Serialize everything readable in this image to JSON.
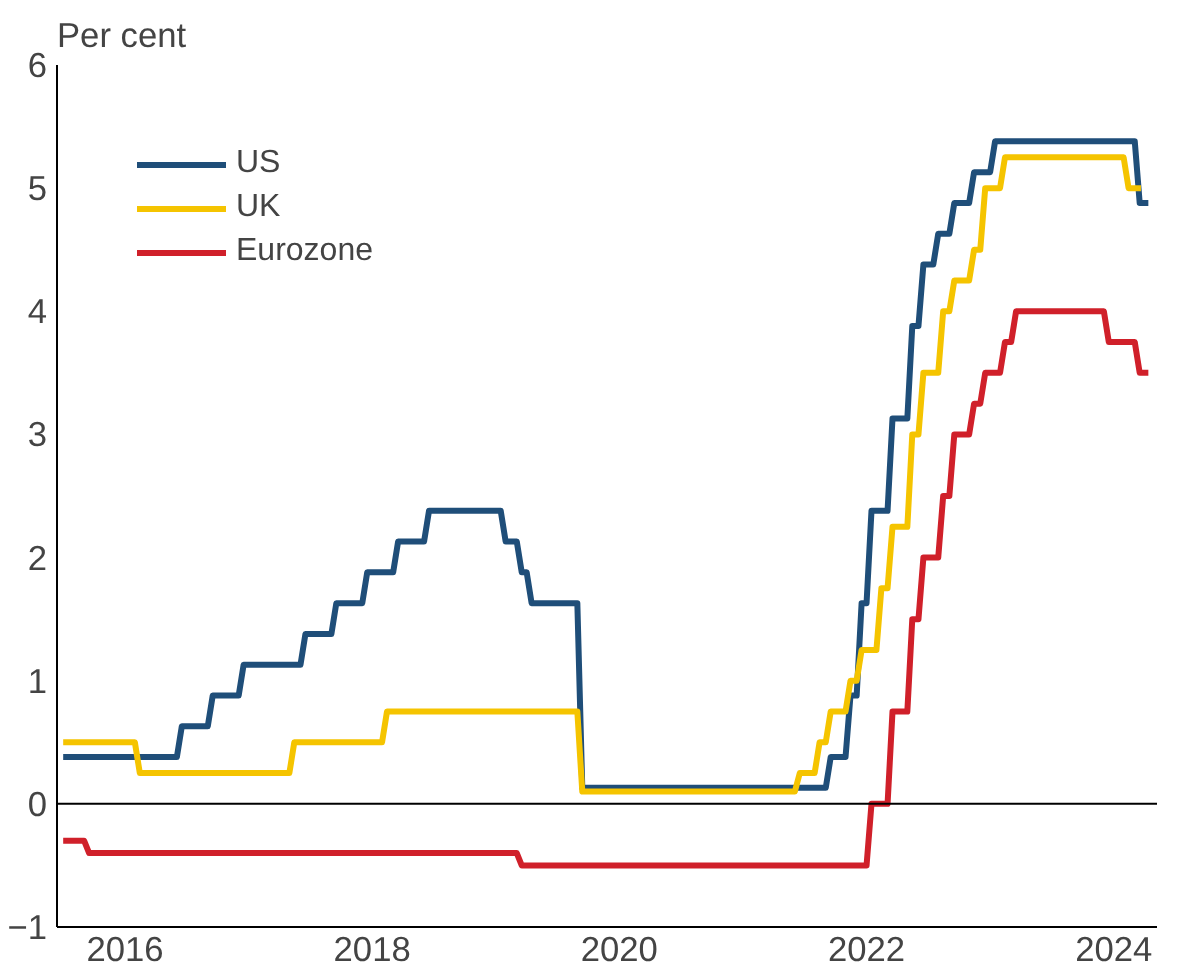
{
  "chart_data": {
    "type": "line",
    "ylabel": "Per cent",
    "xlim": [
      2015.95,
      2024.85
    ],
    "ylim": [
      -1,
      6
    ],
    "xticks": [
      {
        "value": 2016.5,
        "label": "2016"
      },
      {
        "value": 2018.5,
        "label": "2018"
      },
      {
        "value": 2020.5,
        "label": "2020"
      },
      {
        "value": 2022.5,
        "label": "2022"
      },
      {
        "value": 2024.5,
        "label": "2024"
      }
    ],
    "yticks": [
      -1,
      0,
      1,
      2,
      3,
      4,
      5,
      6
    ],
    "legend": "top left",
    "grid": false,
    "ref_lines": [
      {
        "axis": "y",
        "value": 0,
        "color": "#000000"
      }
    ],
    "series": [
      {
        "name": "US",
        "color": "#1f4e79",
        "x": [
          2016.0,
          2016.92,
          2016.96,
          2017.17,
          2017.21,
          2017.42,
          2017.46,
          2017.92,
          2017.96,
          2018.17,
          2018.21,
          2018.42,
          2018.46,
          2018.67,
          2018.71,
          2018.92,
          2018.96,
          2019.54,
          2019.58,
          2019.67,
          2019.71,
          2019.75,
          2019.79,
          2020.16,
          2020.2,
          2022.17,
          2022.21,
          2022.33,
          2022.37,
          2022.42,
          2022.46,
          2022.5,
          2022.54,
          2022.67,
          2022.71,
          2022.83,
          2022.87,
          2022.92,
          2022.96,
          2023.04,
          2023.08,
          2023.17,
          2023.21,
          2023.33,
          2023.37,
          2023.5,
          2023.54,
          2024.67,
          2024.71,
          2024.78
        ],
        "values": [
          0.38,
          0.38,
          0.63,
          0.63,
          0.88,
          0.88,
          1.13,
          1.13,
          1.38,
          1.38,
          1.63,
          1.63,
          1.88,
          1.88,
          2.13,
          2.13,
          2.38,
          2.38,
          2.13,
          2.13,
          1.88,
          1.88,
          1.63,
          1.63,
          0.13,
          0.13,
          0.38,
          0.38,
          0.88,
          0.88,
          1.63,
          1.63,
          2.38,
          2.38,
          3.13,
          3.13,
          3.88,
          3.88,
          4.38,
          4.38,
          4.63,
          4.63,
          4.88,
          4.88,
          5.13,
          5.13,
          5.38,
          5.38,
          4.88,
          4.88
        ]
      },
      {
        "name": "UK",
        "color": "#f5c400",
        "x": [
          2016.0,
          2016.58,
          2016.62,
          2017.83,
          2017.87,
          2018.58,
          2018.62,
          2020.16,
          2020.2,
          2021.92,
          2021.96,
          2022.08,
          2022.12,
          2022.17,
          2022.21,
          2022.33,
          2022.37,
          2022.42,
          2022.46,
          2022.58,
          2022.62,
          2022.67,
          2022.71,
          2022.83,
          2022.87,
          2022.92,
          2022.96,
          2023.08,
          2023.12,
          2023.17,
          2023.21,
          2023.33,
          2023.37,
          2023.42,
          2023.46,
          2023.58,
          2023.62,
          2024.58,
          2024.62,
          2024.72
        ],
        "values": [
          0.5,
          0.5,
          0.25,
          0.25,
          0.5,
          0.5,
          0.75,
          0.75,
          0.1,
          0.1,
          0.25,
          0.25,
          0.5,
          0.5,
          0.75,
          0.75,
          1.0,
          1.0,
          1.25,
          1.25,
          1.75,
          1.75,
          2.25,
          2.25,
          3.0,
          3.0,
          3.5,
          3.5,
          4.0,
          4.0,
          4.25,
          4.25,
          4.5,
          4.5,
          5.0,
          5.0,
          5.25,
          5.25,
          5.0,
          5.0
        ]
      },
      {
        "name": "Eurozone",
        "color": "#d0202a",
        "x": [
          2016.0,
          2016.17,
          2016.21,
          2019.67,
          2019.71,
          2022.5,
          2022.54,
          2022.67,
          2022.71,
          2022.83,
          2022.87,
          2022.92,
          2022.96,
          2023.08,
          2023.12,
          2023.17,
          2023.21,
          2023.33,
          2023.37,
          2023.42,
          2023.46,
          2023.58,
          2023.62,
          2023.67,
          2023.71,
          2024.42,
          2024.46,
          2024.67,
          2024.71,
          2024.78
        ],
        "values": [
          -0.3,
          -0.3,
          -0.4,
          -0.4,
          -0.5,
          -0.5,
          0.0,
          0.0,
          0.75,
          0.75,
          1.5,
          1.5,
          2.0,
          2.0,
          2.5,
          2.5,
          3.0,
          3.0,
          3.25,
          3.25,
          3.5,
          3.5,
          3.75,
          3.75,
          4.0,
          4.0,
          3.75,
          3.75,
          3.5,
          3.5
        ]
      }
    ]
  }
}
